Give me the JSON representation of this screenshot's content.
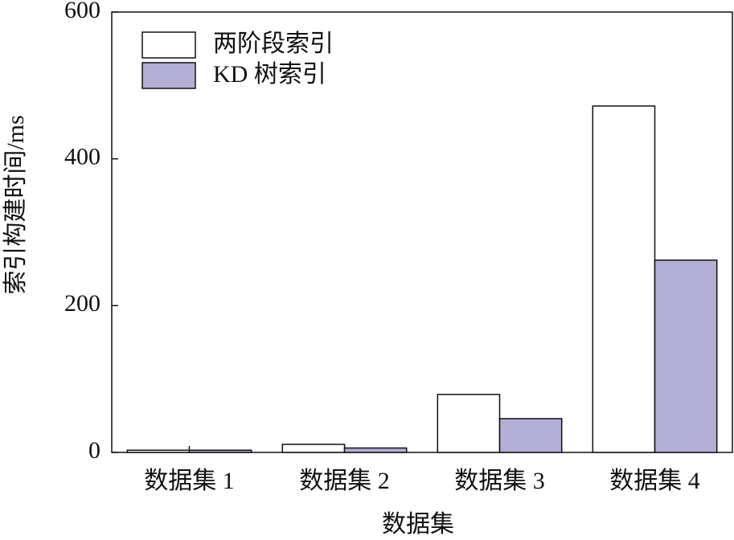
{
  "chart_data": {
    "type": "bar",
    "x_label": "数据集",
    "y_label": "索引构建时间/ms",
    "categories": [
      "数据集 1",
      "数据集 2",
      "数据集 3",
      "数据集 4"
    ],
    "series": [
      {
        "name": "两阶段索引",
        "color": "#ffffff",
        "values": [
          3,
          11,
          79,
          472
        ]
      },
      {
        "name": "KD 树索引",
        "color": "#b3aed6",
        "values": [
          3,
          6,
          46,
          262
        ]
      }
    ],
    "ylim": [
      0,
      600
    ],
    "yticks": [
      0,
      200,
      400,
      600
    ],
    "grid": false,
    "legend": "upper left"
  }
}
